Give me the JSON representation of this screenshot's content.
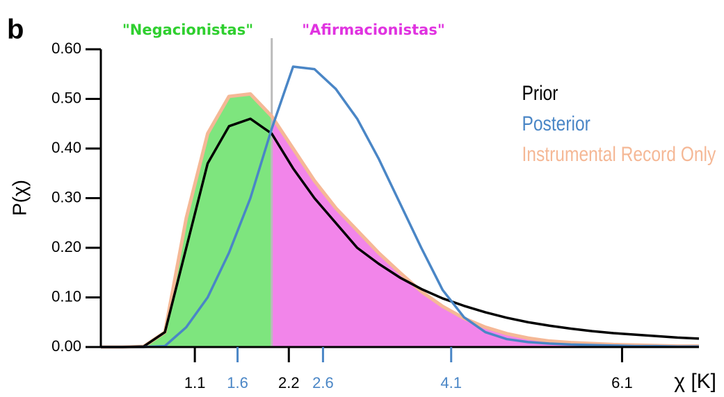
{
  "chart_data": {
    "type": "line",
    "panel_label": "b",
    "regions": [
      {
        "label": "\"Negacionistas\"",
        "color": "#2fcf2f",
        "fill": "#7ee57e"
      },
      {
        "label": "\"Afirmacionistas\"",
        "color": "#e033e0",
        "fill": "#f285ea"
      }
    ],
    "split": 2,
    "split_color": "#bbbbbb",
    "fill_series": 2,
    "y_label": "P(χ)",
    "x_label": "χ [K]",
    "x": [
      0,
      0.25,
      0.5,
      0.75,
      1,
      1.25,
      1.5,
      1.75,
      2,
      2.25,
      2.5,
      2.75,
      3,
      3.25,
      3.5,
      3.75,
      4,
      4.25,
      4.5,
      4.75,
      5,
      5.25,
      5.5,
      5.75,
      6,
      6.25,
      6.5,
      6.75,
      7
    ],
    "series": [
      {
        "name": "Prior",
        "color": "#000000",
        "values": [
          0,
          0,
          0.001,
          0.03,
          0.2,
          0.37,
          0.445,
          0.46,
          0.43,
          0.36,
          0.3,
          0.25,
          0.2,
          0.168,
          0.14,
          0.117,
          0.098,
          0.083,
          0.07,
          0.059,
          0.05,
          0.043,
          0.037,
          0.032,
          0.028,
          0.025,
          0.022,
          0.019,
          0.017
        ]
      },
      {
        "name": "Posterior",
        "color": "#4a86c6",
        "values": [
          0,
          0,
          0,
          0.002,
          0.04,
          0.1,
          0.19,
          0.3,
          0.44,
          0.565,
          0.56,
          0.52,
          0.46,
          0.38,
          0.29,
          0.2,
          0.115,
          0.06,
          0.03,
          0.016,
          0.01,
          0.007,
          0.005,
          0.004,
          0.003,
          0.002,
          0.002,
          0.001,
          0.001
        ]
      },
      {
        "name": "Instrumental Record Only",
        "color": "#f5b896",
        "values": [
          0,
          0,
          0.001,
          0.03,
          0.26,
          0.43,
          0.505,
          0.51,
          0.465,
          0.4,
          0.335,
          0.28,
          0.235,
          0.19,
          0.15,
          0.112,
          0.082,
          0.058,
          0.04,
          0.027,
          0.018,
          0.012,
          0.009,
          0.007,
          0.005,
          0.004,
          0.003,
          0.002,
          0.002
        ]
      }
    ],
    "xlim": [
      0,
      7
    ],
    "xticks": [
      1.1,
      1.6,
      2.2,
      2.6,
      4.1,
      6.1
    ],
    "xtick_colors": [
      "#000000",
      "#4a86c6",
      "#000000",
      "#4a86c6",
      "#4a86c6",
      "#000000"
    ],
    "ylim": [
      0,
      0.6
    ],
    "yticks": [
      {
        "value": 0,
        "label": "0.00"
      },
      {
        "value": 0.1,
        "label": "0.10"
      },
      {
        "value": 0.2,
        "label": "0.20"
      },
      {
        "value": 0.3,
        "label": "0.30"
      },
      {
        "value": 0.4,
        "label": "0.40"
      },
      {
        "value": 0.5,
        "label": "0.50"
      },
      {
        "value": 0.6,
        "label": "0.60"
      }
    ]
  }
}
